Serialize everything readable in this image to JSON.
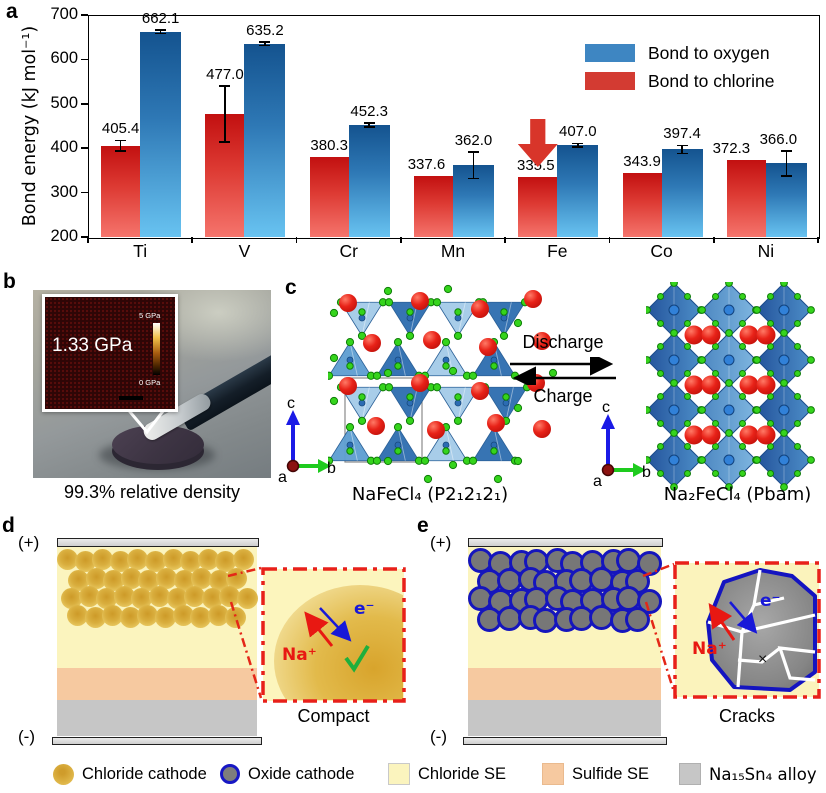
{
  "panels": {
    "a": {
      "label": "a",
      "chart_data": {
        "type": "bar",
        "title": "",
        "xlabel": "",
        "ylabel": "Bond energy (kJ mol⁻¹)",
        "ylim": [
          200,
          700
        ],
        "yticks": [
          200,
          300,
          400,
          500,
          600,
          700
        ],
        "categories": [
          "Ti",
          "V",
          "Cr",
          "Mn",
          "Fe",
          "Co",
          "Ni"
        ],
        "series": [
          {
            "name": "Bond to chlorine",
            "color": "#d33b32",
            "values": [
              405.4,
              477.0,
              380.3,
              337.6,
              335.5,
              343.9,
              372.3
            ],
            "errors": [
              12,
              63,
              0,
              0,
              0,
              0,
              0
            ]
          },
          {
            "name": "Bond to oxygen",
            "color": "#3e86c2",
            "values": [
              662.1,
              635.2,
              452.3,
              362.0,
              407.0,
              397.4,
              366.0
            ],
            "errors": [
              4,
              4,
              4,
              30,
              4,
              9,
              28
            ]
          }
        ],
        "legend": [
          {
            "label": "Bond to oxygen",
            "color": "#3e86c2"
          },
          {
            "label": "Bond to chlorine",
            "color": "#d33b32"
          }
        ],
        "legend_position": "top-right",
        "annotation": "red arrow highlighting Fe bond-to-chlorine bar"
      }
    },
    "b": {
      "label": "b",
      "modulus_value": "1.33 GPa",
      "scale_max": "5 GPa",
      "scale_min": "0 GPa",
      "caption": "99.3% relative density"
    },
    "c": {
      "label": "c",
      "discharge_label": "Discharge",
      "charge_label": "Charge",
      "left_formula": "NaFeCl₄ (P2₁2₁2₁)",
      "right_formula": "Na₂FeCl₄ (Pbam)",
      "axis_up": "c",
      "axis_right": "b",
      "axis_origin": "a"
    },
    "d": {
      "label": "d",
      "positive": "(+)",
      "negative": "(-)",
      "ion": "Na⁺",
      "electron": "e⁻",
      "caption": "Compact"
    },
    "e": {
      "label": "e",
      "positive": "(+)",
      "negative": "(-)",
      "ion": "Na⁺",
      "electron": "e⁻",
      "blocked_mark": "×",
      "caption": "Cracks"
    }
  },
  "legend": {
    "items": [
      {
        "key": "chloride-cathode",
        "label": "Chloride cathode"
      },
      {
        "key": "oxide-cathode",
        "label": "Oxide cathode"
      },
      {
        "key": "chloride-se",
        "label": "Chloride SE"
      },
      {
        "key": "sulfide-se",
        "label": "Sulfide SE"
      },
      {
        "key": "alloy",
        "label": "Na₁₅Sn₄ alloy"
      }
    ]
  },
  "colors": {
    "bond_oxygen": "#3e86c2",
    "bond_chlorine": "#d33b32",
    "highlight_arrow": "#d8352a",
    "chloride_cathode": "#ddb345",
    "oxide_cathode": "#7d7d7d",
    "oxide_border": "#1717c4",
    "chloride_se": "#fbf4be",
    "sulfide_se": "#f6c9a0",
    "alloy": "#c6c6c6"
  }
}
